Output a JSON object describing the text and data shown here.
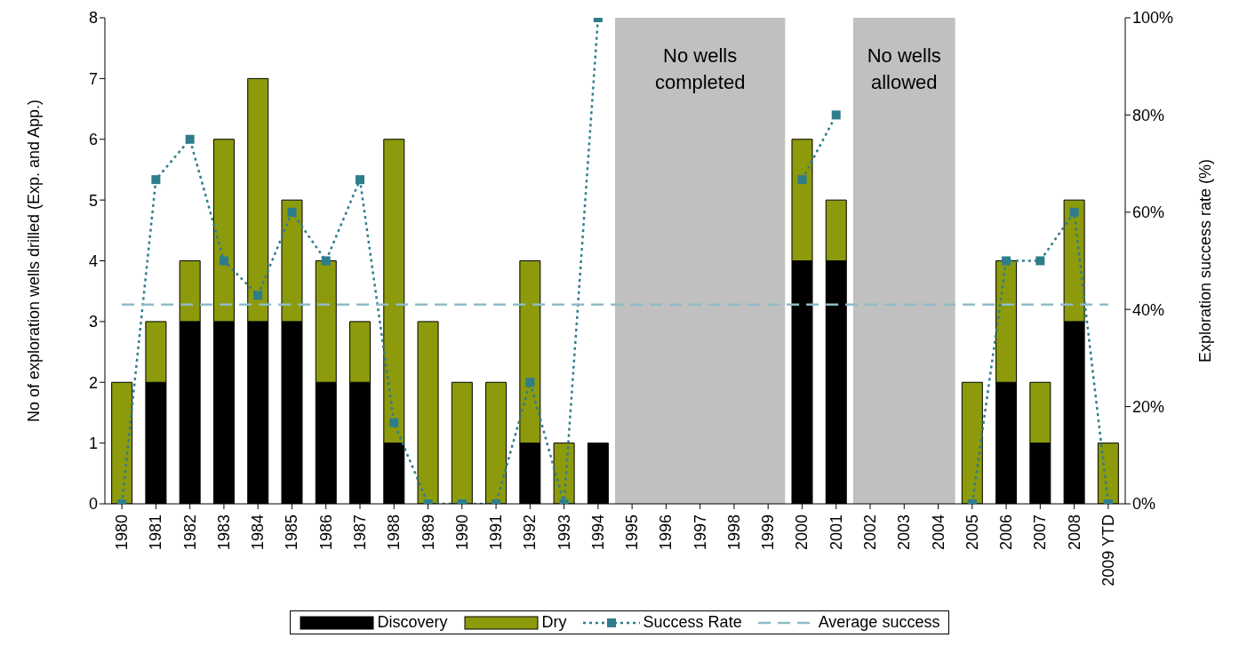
{
  "chart_data": {
    "type": "bar",
    "stacked": true,
    "categories": [
      "1980",
      "1981",
      "1982",
      "1983",
      "1984",
      "1985",
      "1986",
      "1987",
      "1988",
      "1989",
      "1990",
      "1991",
      "1992",
      "1993",
      "1994",
      "1995",
      "1996",
      "1997",
      "1998",
      "1999",
      "2000",
      "2001",
      "2002",
      "2003",
      "2004",
      "2005",
      "2006",
      "2007",
      "2008",
      "2009 YTD"
    ],
    "series": [
      {
        "name": "Discovery",
        "color": "#000000",
        "values": [
          0,
          2,
          3,
          3,
          3,
          3,
          2,
          2,
          1,
          0,
          0,
          0,
          1,
          0,
          1,
          null,
          null,
          null,
          null,
          null,
          4,
          4,
          null,
          null,
          null,
          0,
          2,
          1,
          3,
          0
        ]
      },
      {
        "name": "Dry",
        "color": "#8c9a0c",
        "values": [
          2,
          1,
          1,
          3,
          4,
          2,
          2,
          1,
          5,
          3,
          2,
          2,
          3,
          1,
          0,
          null,
          null,
          null,
          null,
          null,
          2,
          1,
          null,
          null,
          null,
          2,
          2,
          1,
          2,
          1
        ]
      },
      {
        "name": "Success Rate",
        "type": "line",
        "axis": "y2",
        "color": "#2e7d8c",
        "marker": "square",
        "line_style": "dotted",
        "values": [
          0,
          66.7,
          75,
          50,
          42.9,
          60,
          50,
          66.7,
          16.7,
          0,
          0,
          0,
          25,
          0,
          100,
          null,
          null,
          null,
          null,
          null,
          66.7,
          80,
          null,
          null,
          null,
          0,
          50,
          50,
          60,
          0
        ]
      },
      {
        "name": "Average success",
        "type": "line",
        "axis": "y2",
        "color": "#8fbcc8",
        "marker": "none",
        "line_style": "dashed",
        "values": [
          41,
          41,
          41,
          41,
          41,
          41,
          41,
          41,
          41,
          41,
          41,
          41,
          41,
          41,
          41,
          41,
          41,
          41,
          41,
          41,
          41,
          41,
          41,
          41,
          41,
          41,
          41,
          41,
          41,
          41
        ]
      }
    ],
    "bands": [
      {
        "axis": "x",
        "from": "1995",
        "to": "1999",
        "label": "No wells completed",
        "color": "#c0c0c0"
      },
      {
        "axis": "x",
        "from": "2002",
        "to": "2004",
        "label": "No wells allowed",
        "color": "#c0c0c0"
      }
    ],
    "ylabel": "No of exploration wells drilled (Exp. and App.)",
    "y2label": "Exploration success rate (%)",
    "ylim": [
      0,
      8
    ],
    "yticks": [
      0,
      1,
      2,
      3,
      4,
      5,
      6,
      7,
      8
    ],
    "y2lim": [
      0,
      100
    ],
    "y2ticks": [
      {
        "value": 0,
        "label": "0%"
      },
      {
        "value": 20,
        "label": "20%"
      },
      {
        "value": 40,
        "label": "40%"
      },
      {
        "value": 60,
        "label": "60%"
      },
      {
        "value": 80,
        "label": "80%"
      },
      {
        "value": 100,
        "label": "100%"
      }
    ],
    "grid": false,
    "legend": "bottom"
  }
}
